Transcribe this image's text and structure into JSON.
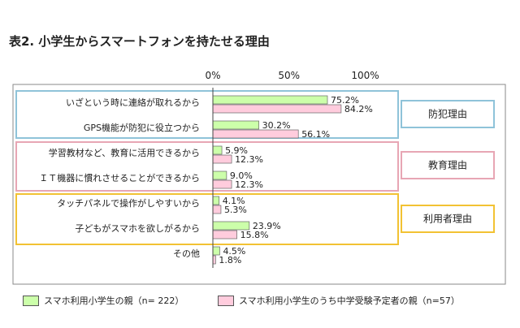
{
  "title": "表2. 小学生からスマートフォンを持たせる理由",
  "chart_data": {
    "type": "bar",
    "orientation": "horizontal",
    "xlim": [
      0,
      100
    ],
    "xticks": [
      "0%",
      "50%",
      "100%"
    ],
    "grid": false,
    "legend_position": "bottom",
    "categories": [
      "いざという時に連絡が取れるから",
      "GPS機能が防犯に役立つから",
      "学習教材など、教育に活用できるから",
      "ＩＴ機器に慣れさせることができるから",
      "タッチパネルで操作がしやすいから",
      "子どもがスマホを欲しがるから",
      "その他"
    ],
    "series": [
      {
        "name": "スマホ利用小学生の親（n= 222）",
        "color": "#ccffaa",
        "values": [
          75.2,
          30.2,
          5.9,
          9.0,
          4.1,
          23.9,
          4.5
        ],
        "labels": [
          "75.2%",
          "30.2%",
          "5.9%",
          "9.0%",
          "4.1%",
          "23.9%",
          "4.5%"
        ]
      },
      {
        "name": "スマホ利用小学生のうち中学受験予定者の親（n=57）",
        "color": "#ffccdd",
        "values": [
          84.2,
          56.1,
          12.3,
          12.3,
          5.3,
          15.8,
          1.8
        ],
        "labels": [
          "84.2%",
          "56.1%",
          "12.3%",
          "12.3%",
          "5.3%",
          "15.8%",
          "1.8%"
        ]
      }
    ],
    "groups": [
      {
        "label": "防犯理由",
        "color": "#8fc3d9",
        "categories": [
          0,
          1
        ]
      },
      {
        "label": "教育理由",
        "color": "#e7a6b4",
        "categories": [
          2,
          3
        ]
      },
      {
        "label": "利用者理由",
        "color": "#f2c233",
        "categories": [
          4,
          5
        ]
      }
    ]
  }
}
